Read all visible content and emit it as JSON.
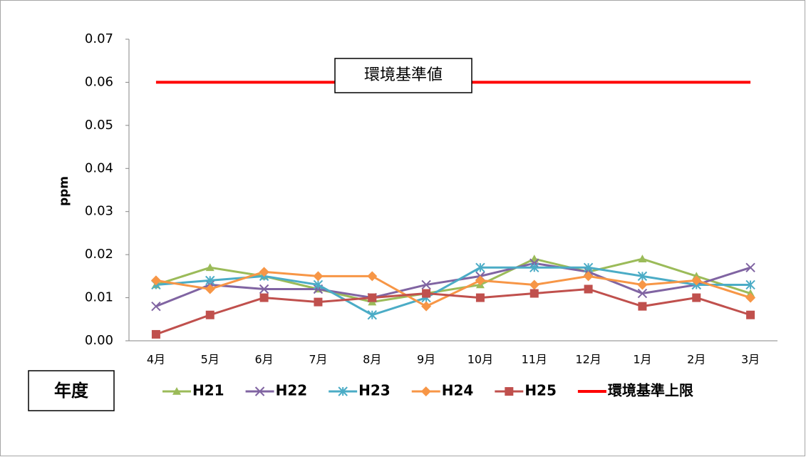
{
  "chart_data": {
    "type": "line",
    "y_label": "ppm",
    "annotation": "環境基準値",
    "legend_title": "年度",
    "categories": [
      "4月",
      "5月",
      "6月",
      "7月",
      "8月",
      "9月",
      "10月",
      "11月",
      "12月",
      "1月",
      "2月",
      "3月"
    ],
    "series": [
      {
        "name": "H21",
        "color": "#9bbb59",
        "marker": "triangle",
        "values": [
          0.013,
          0.017,
          0.015,
          0.012,
          0.009,
          0.011,
          0.013,
          0.019,
          0.016,
          0.019,
          0.015,
          0.011
        ]
      },
      {
        "name": "H22",
        "color": "#8064a2",
        "marker": "x",
        "values": [
          0.008,
          0.013,
          0.012,
          0.012,
          0.01,
          0.013,
          0.015,
          0.018,
          0.016,
          0.011,
          0.013,
          0.017
        ]
      },
      {
        "name": "H23",
        "color": "#4bacc6",
        "marker": "star",
        "values": [
          0.013,
          0.014,
          0.015,
          0.013,
          0.006,
          0.01,
          0.017,
          0.017,
          0.017,
          0.015,
          0.013,
          0.013
        ]
      },
      {
        "name": "H24",
        "color": "#f79646",
        "marker": "diamond",
        "values": [
          0.014,
          0.012,
          0.016,
          0.015,
          0.015,
          0.008,
          0.014,
          0.013,
          0.015,
          0.013,
          0.014,
          0.01
        ]
      },
      {
        "name": "H25",
        "color": "#c0504d",
        "marker": "square",
        "values": [
          0.0015,
          0.006,
          0.01,
          0.009,
          0.01,
          0.011,
          0.01,
          0.011,
          0.012,
          0.008,
          0.01,
          0.006
        ]
      },
      {
        "name": "環境基準上限",
        "color": "#ff0000",
        "marker": null,
        "values": [
          0.06,
          0.06,
          0.06,
          0.06,
          0.06,
          0.06,
          0.06,
          0.06,
          0.06,
          0.06,
          0.06,
          0.06
        ]
      }
    ],
    "ylim": [
      0,
      0.07
    ],
    "yticks": [
      {
        "value": 0,
        "label": "0.00"
      },
      0.01,
      0.02,
      0.03,
      0.04,
      0.05,
      0.06,
      0.07
    ]
  }
}
